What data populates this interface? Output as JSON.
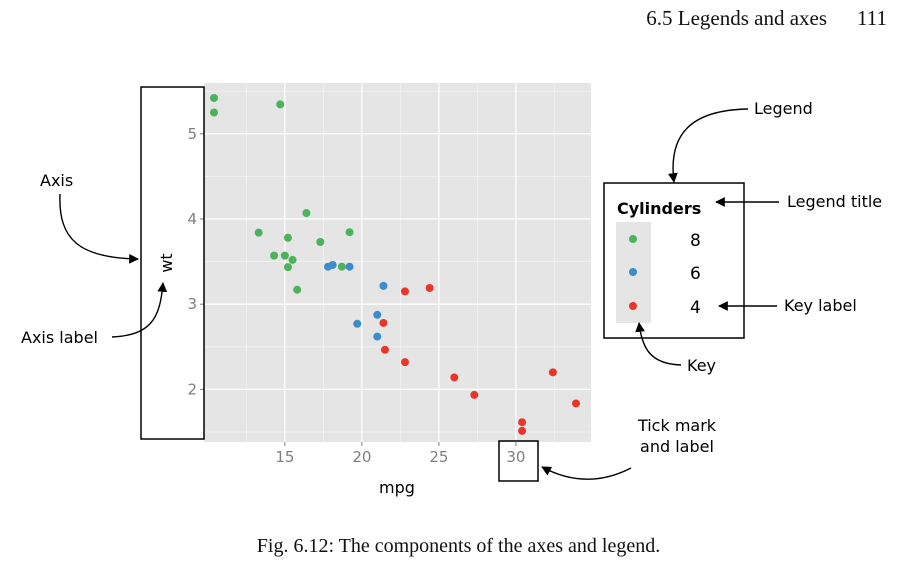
{
  "page_header": {
    "section": "6.5  Legends and axes",
    "page_number": "111"
  },
  "caption": "Fig. 6.12: The components of the axes and legend.",
  "annotations": {
    "axis": "Axis",
    "axis_label": "Axis label",
    "legend": "Legend",
    "legend_title": "Legend title",
    "key_label": "Key label",
    "key": "Key",
    "tick_line1": "Tick mark",
    "tick_line2": "and label"
  },
  "chart_data": {
    "type": "scatter",
    "xlabel": "mpg",
    "ylabel": "wt",
    "xlim": [
      10.4,
      33.9
    ],
    "ylim": [
      1.5,
      5.42
    ],
    "x_ticks": [
      15,
      20,
      25,
      30
    ],
    "y_ticks": [
      2,
      3,
      4,
      5
    ],
    "grid": true,
    "legend": {
      "title": "Cylinders",
      "placement": "right",
      "entries": [
        {
          "label": "8",
          "color": "#4DB25C"
        },
        {
          "label": "6",
          "color": "#3C8DC9"
        },
        {
          "label": "4",
          "color": "#E8362A"
        }
      ]
    },
    "series": [
      {
        "name": "8",
        "color": "#4DB25C",
        "points": [
          [
            10.4,
            5.42
          ],
          [
            10.4,
            5.25
          ],
          [
            14.7,
            5.345
          ],
          [
            16.4,
            4.07
          ],
          [
            13.3,
            3.84
          ],
          [
            15.0,
            3.57
          ],
          [
            14.3,
            3.57
          ],
          [
            15.2,
            3.78
          ],
          [
            17.3,
            3.73
          ],
          [
            19.2,
            3.845
          ],
          [
            15.5,
            3.52
          ],
          [
            15.2,
            3.435
          ],
          [
            18.7,
            3.44
          ],
          [
            15.8,
            3.17
          ]
        ]
      },
      {
        "name": "6",
        "color": "#3C8DC9",
        "points": [
          [
            17.8,
            3.44
          ],
          [
            18.1,
            3.46
          ],
          [
            19.2,
            3.44
          ],
          [
            21.4,
            3.215
          ],
          [
            21.0,
            2.875
          ],
          [
            19.7,
            2.77
          ],
          [
            21.0,
            2.62
          ]
        ]
      },
      {
        "name": "4",
        "color": "#E8362A",
        "points": [
          [
            22.8,
            3.15
          ],
          [
            24.4,
            3.19
          ],
          [
            21.4,
            2.78
          ],
          [
            21.5,
            2.465
          ],
          [
            22.8,
            2.32
          ],
          [
            26.0,
            2.14
          ],
          [
            27.3,
            1.935
          ],
          [
            32.4,
            2.2
          ],
          [
            33.9,
            1.835
          ],
          [
            30.4,
            1.615
          ],
          [
            30.4,
            1.513
          ]
        ]
      }
    ]
  }
}
